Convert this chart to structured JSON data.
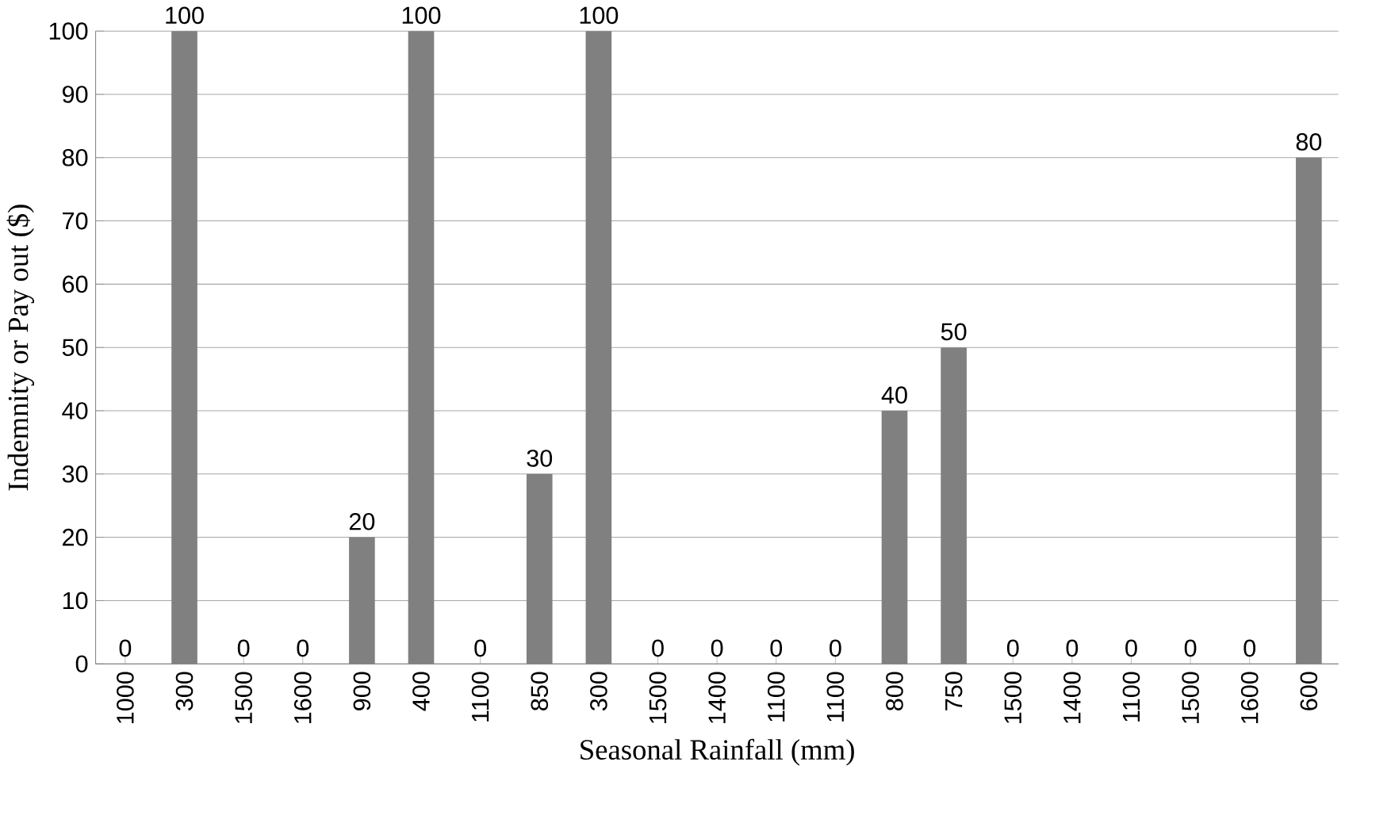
{
  "chart_data": {
    "type": "bar",
    "xlabel": "Seasonal Rainfall (mm)",
    "ylabel": "Indemnity or Pay out ($)",
    "categories": [
      "1000",
      "300",
      "1500",
      "1600",
      "900",
      "400",
      "1100",
      "850",
      "300",
      "1500",
      "1400",
      "1100",
      "1100",
      "800",
      "750",
      "1500",
      "1400",
      "1100",
      "1500",
      "1600",
      "600"
    ],
    "values": [
      0,
      100,
      0,
      0,
      20,
      100,
      0,
      30,
      100,
      0,
      0,
      0,
      0,
      40,
      50,
      0,
      0,
      0,
      0,
      0,
      80
    ],
    "color": "#808080",
    "ylim": [
      0,
      100
    ],
    "yticks": [
      0,
      10,
      20,
      30,
      40,
      50,
      60,
      70,
      80,
      90,
      100
    ],
    "grid": "y",
    "data_labels": true
  }
}
